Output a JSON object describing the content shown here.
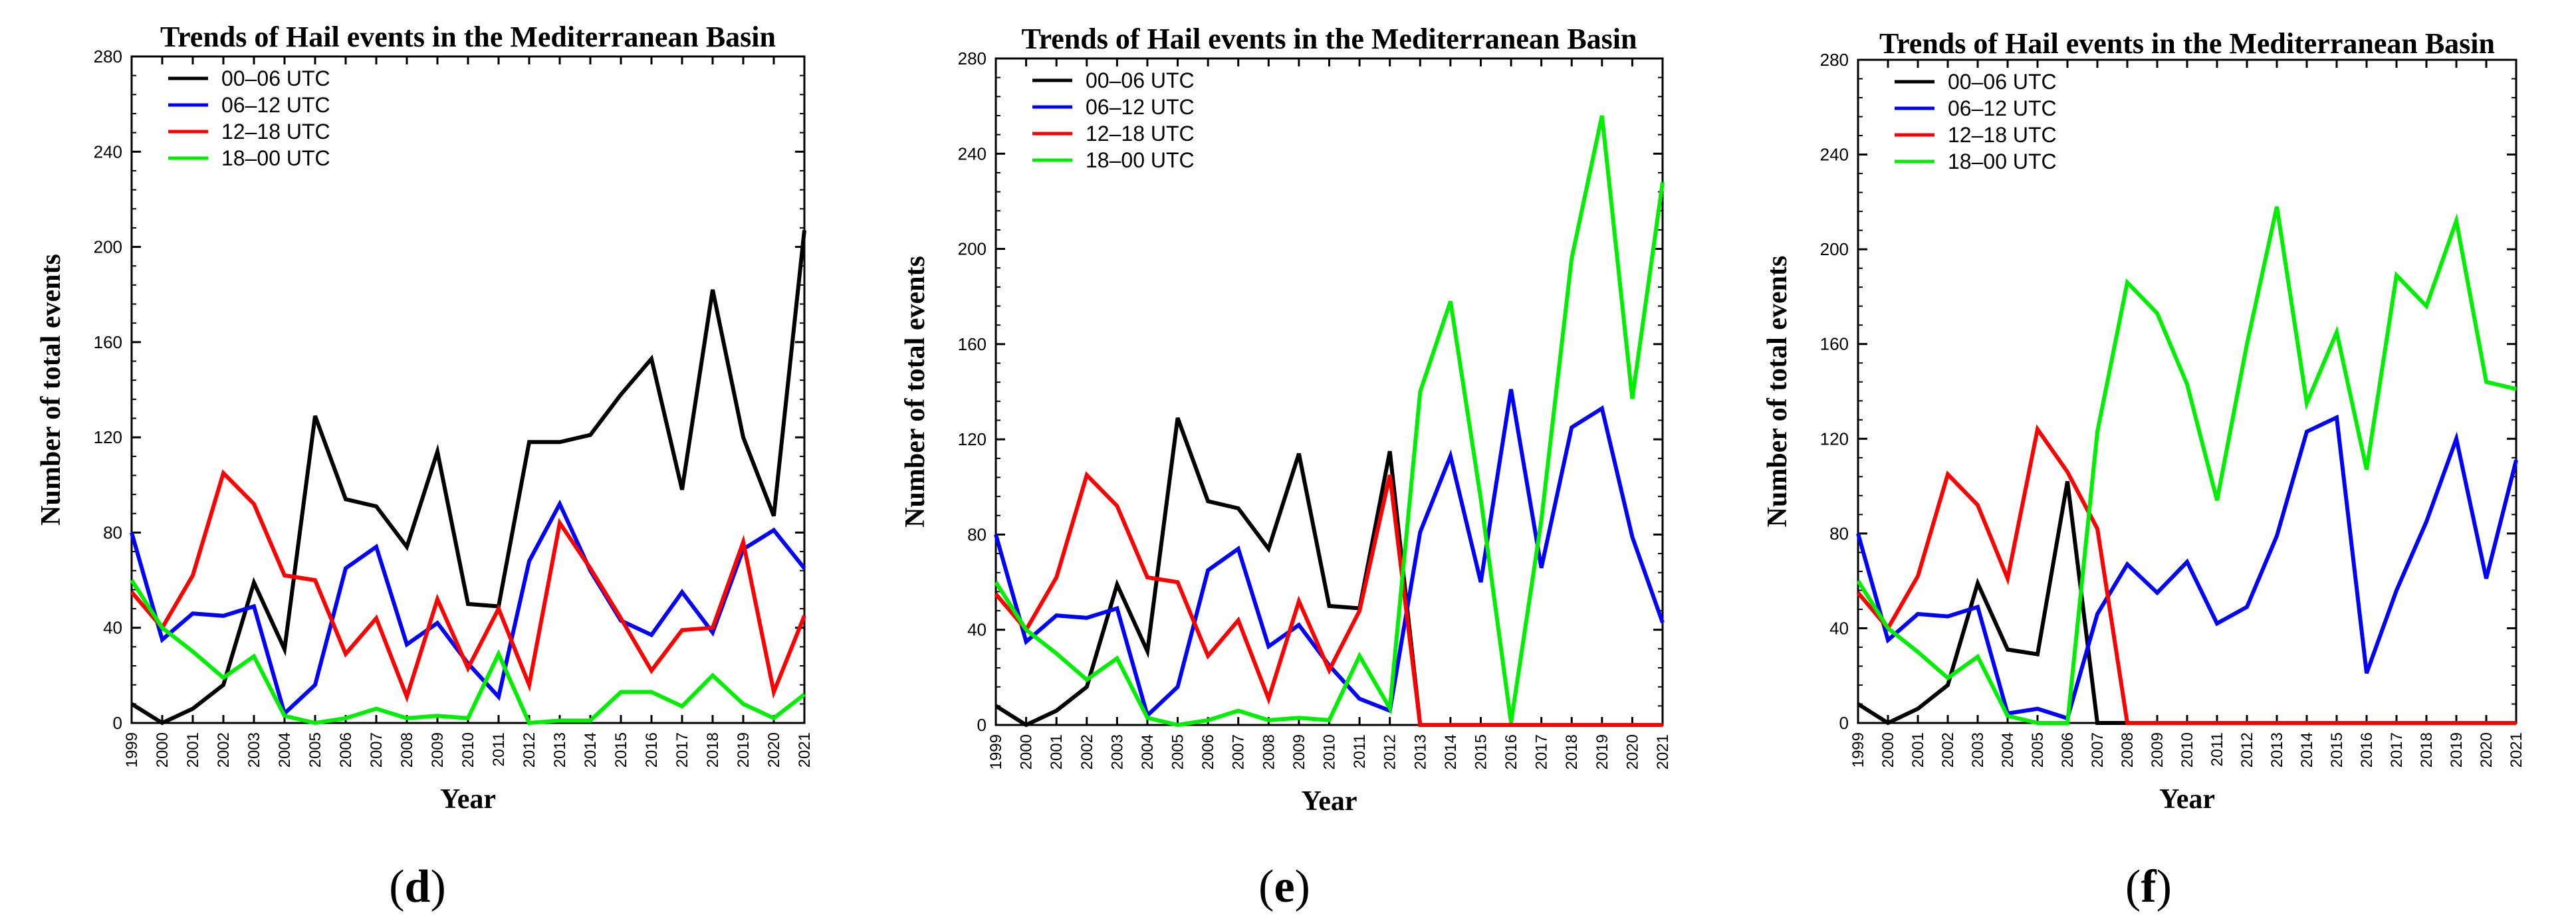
{
  "chart_data": [
    {
      "type": "line",
      "panel_label": "d",
      "title": "Trends of Hail events in the Mediterranean Basin",
      "xlabel": "Year",
      "ylabel": "Number of total events",
      "ylim": [
        0,
        280
      ],
      "yticks": [
        0,
        40,
        80,
        120,
        160,
        200,
        240,
        280
      ],
      "legend_position": "top-left",
      "categories": [
        "1999",
        "2000",
        "2001",
        "2002",
        "2003",
        "2004",
        "2005",
        "2006",
        "2007",
        "2008",
        "2009",
        "2010",
        "2011",
        "2012",
        "2013",
        "2014",
        "2015",
        "2016",
        "2017",
        "2018",
        "2019",
        "2020",
        "2021"
      ],
      "series": [
        {
          "name": "00–06 UTC",
          "color": "#000000",
          "values": [
            8,
            0,
            6,
            16,
            59,
            31,
            129,
            94,
            91,
            74,
            114,
            50,
            49,
            118,
            118,
            121,
            138,
            153,
            98,
            182,
            120,
            87,
            207
          ]
        },
        {
          "name": "06–12 UTC",
          "color": "#0000ff",
          "values": [
            80,
            35,
            46,
            45,
            49,
            4,
            16,
            65,
            74,
            33,
            42,
            25,
            11,
            68,
            92,
            64,
            43,
            37,
            55,
            38,
            73,
            81,
            65
          ]
        },
        {
          "name": "12–18 UTC",
          "color": "#ff0000",
          "values": [
            55,
            40,
            62,
            105,
            92,
            62,
            60,
            29,
            44,
            11,
            52,
            23,
            48,
            16,
            84,
            65,
            44,
            22,
            39,
            40,
            76,
            13,
            45
          ]
        },
        {
          "name": "18–00 UTC",
          "color": "#00ee00",
          "values": [
            60,
            40,
            30,
            19,
            28,
            3,
            0,
            2,
            6,
            2,
            3,
            2,
            29,
            0,
            1,
            1,
            13,
            13,
            7,
            20,
            8,
            2,
            12
          ]
        }
      ]
    },
    {
      "type": "line",
      "panel_label": "e",
      "title": "Trends of Hail events in the Mediterranean Basin",
      "xlabel": "Year",
      "ylabel": "Number of total events",
      "ylim": [
        0,
        280
      ],
      "yticks": [
        0,
        40,
        80,
        120,
        160,
        200,
        240,
        280
      ],
      "legend_position": "top-left",
      "categories": [
        "1999",
        "2000",
        "2001",
        "2002",
        "2003",
        "2004",
        "2005",
        "2006",
        "2007",
        "2008",
        "2009",
        "2010",
        "2011",
        "2012",
        "2013",
        "2014",
        "2015",
        "2016",
        "2017",
        "2018",
        "2019",
        "2020",
        "2021"
      ],
      "series": [
        {
          "name": "00–06 UTC",
          "color": "#000000",
          "values": [
            8,
            0,
            6,
            16,
            59,
            31,
            129,
            94,
            91,
            74,
            114,
            50,
            49,
            115,
            0,
            0,
            0,
            0,
            0,
            0,
            0,
            0,
            0
          ]
        },
        {
          "name": "06–12 UTC",
          "color": "#0000ff",
          "values": [
            80,
            35,
            46,
            45,
            49,
            4,
            16,
            65,
            74,
            33,
            42,
            25,
            11,
            6,
            81,
            113,
            60,
            141,
            66,
            125,
            133,
            79,
            43
          ]
        },
        {
          "name": "12–18 UTC",
          "color": "#ff0000",
          "values": [
            55,
            40,
            62,
            105,
            92,
            62,
            60,
            29,
            44,
            11,
            52,
            23,
            48,
            105,
            0,
            0,
            0,
            0,
            0,
            0,
            0,
            0,
            0
          ]
        },
        {
          "name": "18–00 UTC",
          "color": "#00ee00",
          "values": [
            60,
            40,
            30,
            19,
            28,
            3,
            0,
            2,
            6,
            2,
            3,
            2,
            29,
            7,
            140,
            178,
            95,
            1,
            86,
            196,
            256,
            137,
            228
          ]
        }
      ]
    },
    {
      "type": "line",
      "panel_label": "f",
      "title": "Trends of Hail events in the Mediterranean Basin",
      "xlabel": "Year",
      "ylabel": "Number of total events",
      "ylim": [
        0,
        280
      ],
      "yticks": [
        0,
        40,
        80,
        120,
        160,
        200,
        240,
        280
      ],
      "legend_position": "top-left",
      "categories": [
        "1999",
        "2000",
        "2001",
        "2002",
        "2003",
        "2004",
        "2005",
        "2006",
        "2007",
        "2008",
        "2009",
        "2010",
        "2011",
        "2012",
        "2013",
        "2014",
        "2015",
        "2016",
        "2017",
        "2018",
        "2019",
        "2020",
        "2021"
      ],
      "series": [
        {
          "name": "00–06 UTC",
          "color": "#000000",
          "values": [
            8,
            0,
            6,
            16,
            59,
            31,
            29,
            102,
            0,
            0,
            0,
            0,
            0,
            0,
            0,
            0,
            0,
            0,
            0,
            0,
            0,
            0,
            0
          ]
        },
        {
          "name": "06–12 UTC",
          "color": "#0000ff",
          "values": [
            80,
            35,
            46,
            45,
            49,
            4,
            6,
            2,
            46,
            67,
            55,
            68,
            42,
            49,
            79,
            123,
            129,
            21,
            56,
            85,
            120,
            61,
            111
          ]
        },
        {
          "name": "12–18 UTC",
          "color": "#ff0000",
          "values": [
            55,
            40,
            62,
            105,
            92,
            61,
            124,
            106,
            82,
            0,
            0,
            0,
            0,
            0,
            0,
            0,
            0,
            0,
            0,
            0,
            0,
            0,
            0
          ]
        },
        {
          "name": "18–00 UTC",
          "color": "#00ee00",
          "values": [
            60,
            40,
            30,
            19,
            28,
            3,
            0,
            0,
            123,
            186,
            173,
            143,
            94,
            160,
            218,
            135,
            165,
            107,
            189,
            176,
            212,
            144,
            141
          ]
        }
      ]
    }
  ]
}
